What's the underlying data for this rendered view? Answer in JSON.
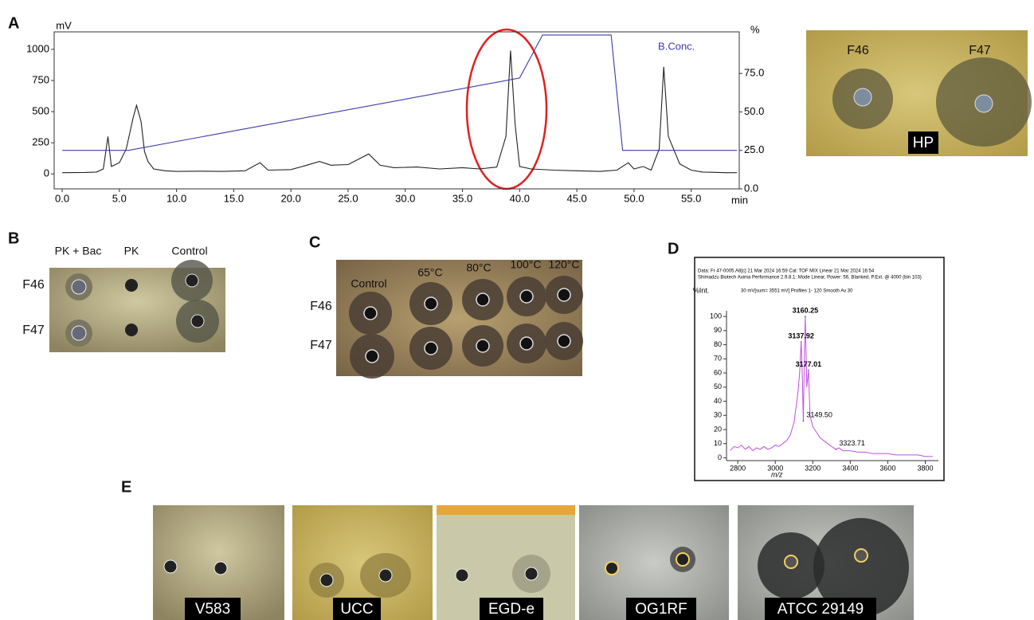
{
  "panel_labels": [
    "A",
    "B",
    "C",
    "D",
    "E"
  ],
  "chart_data": [
    {
      "type": "line",
      "xlim": [
        -0.7,
        59.2
      ],
      "ylim": [
        -120,
        1140
      ],
      "y2lim": [
        0,
        102
      ],
      "xticks": [
        {
          "value": 0,
          "label": "0.0"
        },
        {
          "value": 5,
          "label": "5.0"
        },
        {
          "value": 10,
          "label": "10.0"
        },
        {
          "value": 15,
          "label": "15.0"
        },
        {
          "value": 20,
          "label": "20.0"
        },
        {
          "value": 25,
          "label": "25.0"
        },
        {
          "value": 30,
          "label": "30.0"
        },
        {
          "value": 35,
          "label": "35.0"
        },
        {
          "value": 40,
          "label": "40.0"
        },
        {
          "value": 45,
          "label": "45.0"
        },
        {
          "value": 50,
          "label": "50.0"
        },
        {
          "value": 55,
          "label": "55.0"
        }
      ],
      "yticks": [
        0,
        250,
        500,
        750,
        1000
      ],
      "y2ticks": [
        {
          "value": 0,
          "label": "0.0"
        },
        {
          "value": 25,
          "label": "25.0"
        },
        {
          "value": 50,
          "label": "50.0"
        },
        {
          "value": 75,
          "label": "75.0"
        }
      ],
      "x_label": "min",
      "y_label": "mV",
      "y2_label": "%",
      "series": [
        {
          "color": "#222222",
          "x": [
            0,
            2,
            3,
            3.6,
            4.0,
            4.3,
            5,
            5.6,
            6.2,
            6.5,
            6.9,
            7.2,
            7.5,
            8,
            9,
            10,
            12,
            14,
            16,
            17.3,
            18,
            20,
            21,
            22.5,
            23.5,
            25,
            26.8,
            27.8,
            29,
            31,
            33,
            35,
            36.5,
            38,
            38.8,
            39.2,
            39.6,
            40,
            41,
            43,
            45,
            47,
            48.5,
            49.5,
            50,
            50.8,
            51.5,
            52.2,
            52.6,
            53,
            54,
            55,
            56,
            58,
            59
          ],
          "values": [
            10,
            12,
            15,
            40,
            300,
            60,
            90,
            200,
            450,
            550,
            420,
            180,
            100,
            40,
            25,
            20,
            22,
            20,
            25,
            90,
            30,
            35,
            60,
            100,
            70,
            75,
            160,
            70,
            50,
            55,
            40,
            50,
            40,
            55,
            300,
            990,
            400,
            60,
            40,
            30,
            25,
            20,
            30,
            90,
            40,
            60,
            30,
            200,
            860,
            300,
            80,
            30,
            15,
            10,
            10
          ]
        },
        {
          "name": "B.Conc.",
          "color": "#3a3aa8",
          "axis": "y2",
          "x": [
            0,
            5.8,
            40.0,
            42.0,
            48.0,
            49.0,
            59.0
          ],
          "values": [
            25,
            25,
            72,
            100,
            100,
            25,
            25
          ]
        }
      ]
    },
    {
      "type": "line",
      "header": [
        "Data: Fr 47-0005.A8[c] 21 Mar 2024 16:59 Cal: TOF MIX Linear 21 Mar 2024 16:54",
        "Shimadzu Biotech Axima Performance 2.9.8.1: Mode Linear, Power: 56, Blanked, P.Ext. @ 4000 (bin 103)",
        "30 mV[sum= 3551 mV]  Profiles 1- 120 Smooth Av 30"
      ],
      "xlim": [
        2740,
        3870
      ],
      "ylim": [
        -2,
        104
      ],
      "xticks": [
        2800,
        3000,
        3200,
        3400,
        3600,
        3800
      ],
      "yticks": [
        0,
        10,
        20,
        30,
        40,
        50,
        60,
        70,
        80,
        90,
        100
      ],
      "x_label": "m/z",
      "y_label": "%Int.",
      "series": [
        {
          "color": "#c050e0",
          "x": [
            2760,
            2780,
            2800,
            2820,
            2840,
            2860,
            2880,
            2900,
            2920,
            2940,
            2960,
            2980,
            3000,
            3020,
            3040,
            3060,
            3080,
            3100,
            3120,
            3130,
            3137.92,
            3145,
            3149.5,
            3155,
            3160.25,
            3168,
            3177.01,
            3185,
            3200,
            3220,
            3240,
            3260,
            3280,
            3300,
            3323.71,
            3340,
            3360,
            3400,
            3440,
            3480,
            3520,
            3560,
            3600,
            3640,
            3680,
            3720,
            3760,
            3800,
            3840
          ],
          "values": [
            5,
            8,
            7,
            9,
            6,
            8,
            5,
            7,
            6,
            8,
            6,
            7,
            9,
            8,
            10,
            12,
            16,
            25,
            45,
            60,
            82,
            55,
            26,
            70,
            100,
            50,
            62,
            30,
            22,
            18,
            14,
            12,
            10,
            8,
            6,
            7,
            5,
            5,
            4,
            4,
            3,
            3,
            3,
            2,
            2,
            2,
            2,
            1,
            1
          ]
        }
      ],
      "peaks": {
        "x": [
          3160.25,
          3137.92,
          3177.01,
          3149.5,
          3323.71
        ],
        "values": [
          100,
          82,
          62,
          26,
          6
        ],
        "x_labels": [
          "3160.25",
          "3137.92",
          "3177.01",
          "3149.50",
          "3323.71"
        ]
      }
    }
  ],
  "hp_plate": {
    "wells": [
      "F46",
      "F47"
    ],
    "tag": "HP"
  },
  "panel_b": {
    "columns": [
      "PK + Bac",
      "PK",
      "Control"
    ],
    "rows": [
      "F46",
      "F47"
    ]
  },
  "panel_c": {
    "columns": [
      "Control",
      "65°C",
      "80°C",
      "100°C",
      "120°C"
    ],
    "rows": [
      "F46",
      "F47"
    ]
  },
  "panel_e": {
    "strains": [
      "V583",
      "UCC",
      "EGD-e",
      "OG1RF",
      "ATCC 29149"
    ]
  }
}
